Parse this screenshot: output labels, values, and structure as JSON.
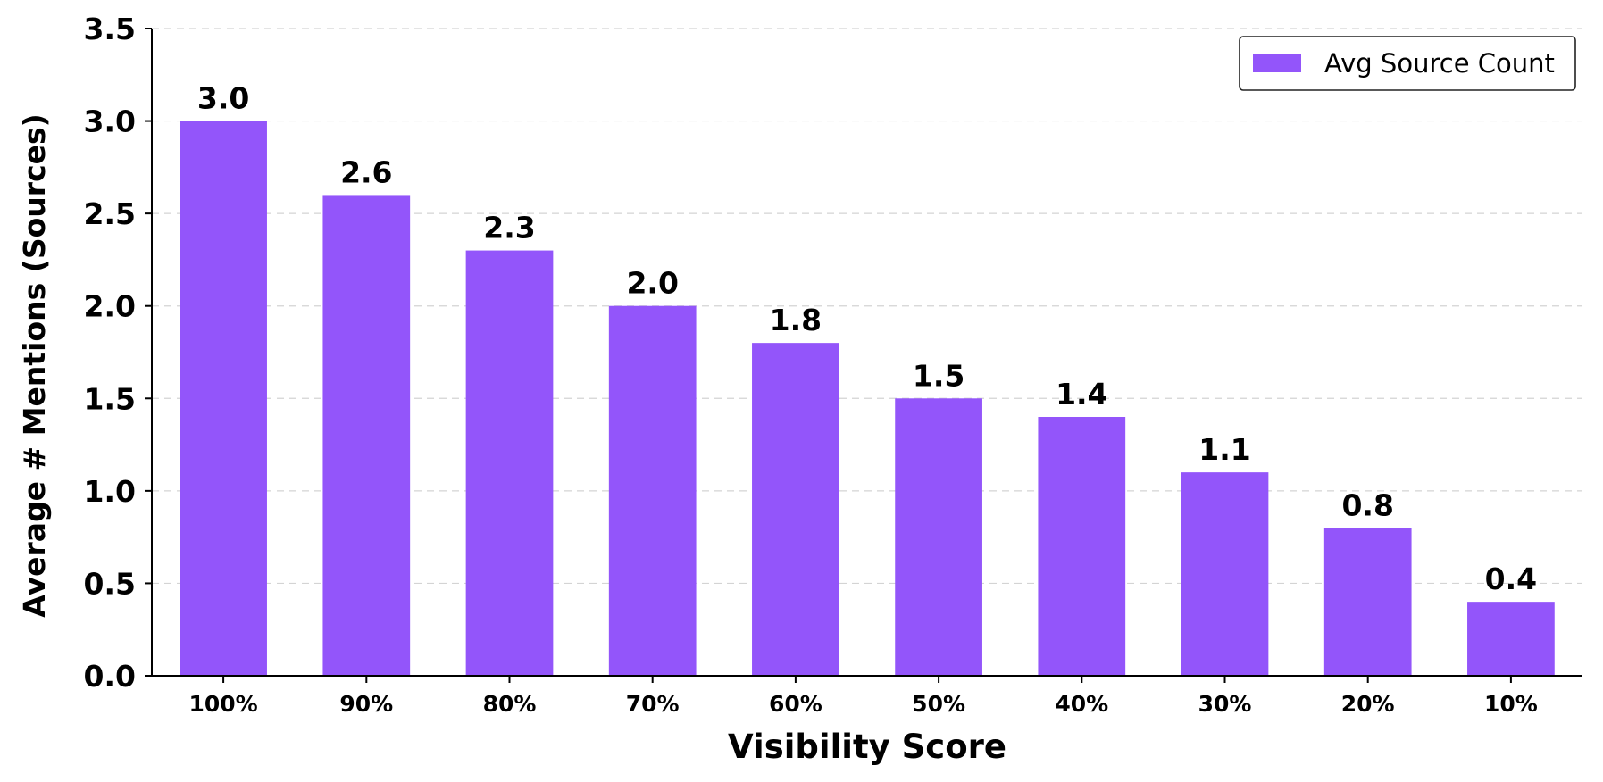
{
  "chart_data": {
    "type": "bar",
    "categories": [
      "100%",
      "90%",
      "80%",
      "70%",
      "60%",
      "50%",
      "40%",
      "30%",
      "20%",
      "10%"
    ],
    "series": [
      {
        "name": "Avg Source Count",
        "values": [
          3.0,
          2.6,
          2.3,
          2.0,
          1.8,
          1.5,
          1.4,
          1.1,
          0.8,
          0.4
        ],
        "labels": [
          "3.0",
          "2.6",
          "2.3",
          "2.0",
          "1.8",
          "1.5",
          "1.4",
          "1.1",
          "0.8",
          "0.4"
        ],
        "color": "#9355fa"
      }
    ],
    "xlabel": "Visibility Score",
    "ylabel": "Average # Mentions (Sources)",
    "ylim": [
      0,
      3.5
    ],
    "yticks": [
      "0.0",
      "0.5",
      "1.0",
      "1.5",
      "2.0",
      "2.5",
      "3.0",
      "3.5"
    ],
    "grid": "horizontal dashed",
    "legend": "top-right"
  }
}
